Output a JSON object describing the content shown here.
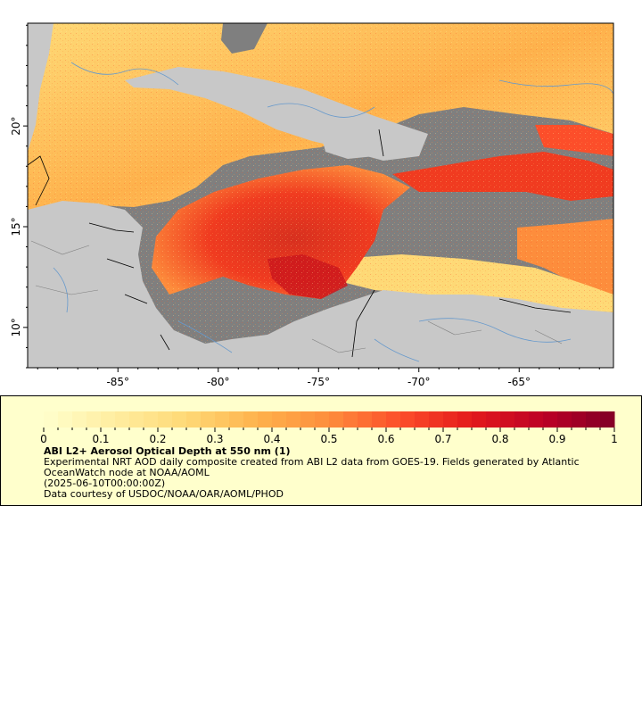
{
  "map": {
    "x_tick_labels": [
      "-85°",
      "-80°",
      "-75°",
      "-70°",
      "-65°"
    ],
    "y_tick_labels": [
      "20°",
      "15°",
      "10°"
    ],
    "lon_range": [
      -89.5,
      -60.3
    ],
    "lat_range": [
      8.0,
      25.1
    ],
    "x_ticks": [
      -85,
      -80,
      -75,
      -70,
      -65
    ],
    "y_ticks": [
      20,
      15,
      10
    ],
    "colors": {
      "land": "#c8c8c8",
      "no_data": "#7f7f7f",
      "rivers": "#6699cc",
      "borders": "#000000",
      "frame": "#000000"
    }
  },
  "legend": {
    "colorbar_tick_labels": [
      "0",
      "0.1",
      "0.2",
      "0.3",
      "0.4",
      "0.5",
      "0.6",
      "0.7",
      "0.8",
      "0.9",
      "1"
    ],
    "colorbar_range": [
      0,
      1
    ],
    "colorbar_stops": [
      "#ffffcc",
      "#ffeda0",
      "#fed976",
      "#feb24c",
      "#fd8d3c",
      "#fc4e2a",
      "#e31a1c",
      "#bd0026",
      "#800026"
    ],
    "title": "ABI L2+ Aerosol Optical Depth at 550 nm (1)",
    "line1": "Experimental NRT AOD daily composite created from ABI L2 data from GOES-19. Fields generated by Atlantic OceanWatch node at NOAA/AOML",
    "line2": "(2025-06-10T00:00:00Z)",
    "line3": "Data courtesy of USDOC/NOAA/OAR/AOML/PHOD"
  }
}
